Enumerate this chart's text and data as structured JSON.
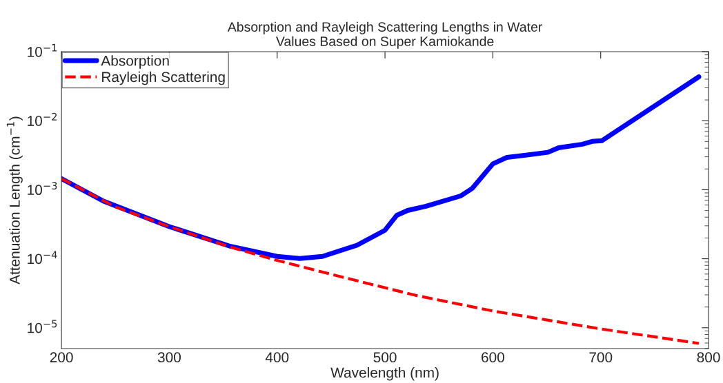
{
  "chart_data": {
    "type": "line",
    "title": "Absorption and Rayleigh Scattering Lengths in Water\nValues Based on Super Kamiokande",
    "xlabel": "Wavelength (nm)",
    "ylabel": "Attenuation Length (cm$^{−1}$)",
    "log": "y",
    "xlim": [
      200,
      800
    ],
    "ylim": [
      5e-06,
      0.1
    ],
    "xticks": [
      200,
      300,
      400,
      500,
      600,
      700,
      800
    ],
    "yticks": [
      {
        "value": 1e-05,
        "label": "10$^{−5}$"
      },
      {
        "value": 0.0001,
        "label": "10$^{−4}$"
      },
      {
        "value": 0.001,
        "label": "10$^{−3}$"
      },
      {
        "value": 0.01,
        "label": "10$^{−2}$"
      },
      {
        "value": 0.1,
        "label": "10$^{−1}$"
      }
    ],
    "grid": false,
    "legend": "top left",
    "marker": "none",
    "series": [
      {
        "name": "Absorption",
        "color": "#0000ff",
        "line_style": "solid",
        "x": [
          200,
          239,
          300,
          357,
          400,
          421,
          442,
          474,
          500,
          511,
          521,
          538,
          570,
          581,
          600,
          613,
          651,
          661,
          683,
          692,
          701,
          791
        ],
        "values": [
          0.00145,
          0.000684,
          0.000292,
          0.000151,
          0.000108,
          0.000101,
          0.000108,
          0.000157,
          0.000259,
          0.000427,
          0.000501,
          0.000577,
          0.000811,
          0.00105,
          0.00237,
          0.00294,
          0.00348,
          0.00406,
          0.00457,
          0.00501,
          0.00513,
          0.0433
        ]
      },
      {
        "name": "Rayleigh Scattering",
        "color": "#ff0000",
        "line_style": "dashed",
        "x": [
          200,
          250,
          300,
          357,
          400,
          463,
          528,
          600,
          700,
          791
        ],
        "values": [
          0.00145,
          0.000564,
          0.000292,
          0.000147,
          9.46e-05,
          5.3e-05,
          2.96e-05,
          1.75e-05,
          9.62e-06,
          5.94e-06
        ]
      }
    ]
  }
}
